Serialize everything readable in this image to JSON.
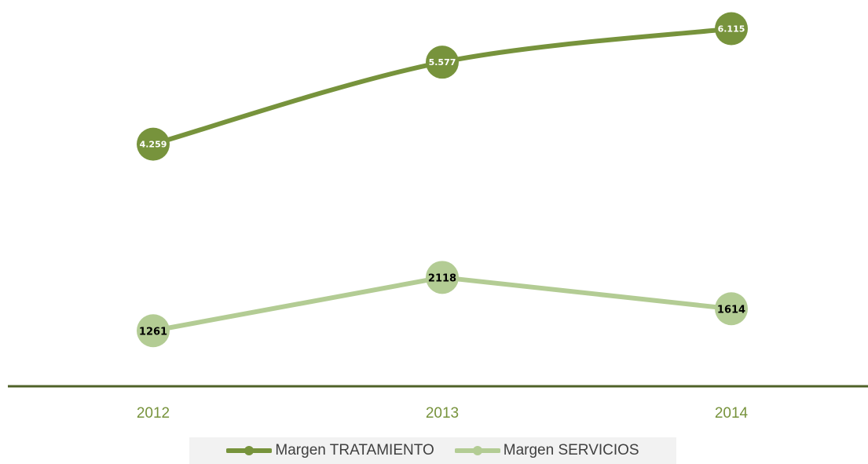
{
  "chart_data": {
    "type": "line",
    "title": "",
    "xlabel": "",
    "ylabel": "",
    "categories": [
      "2012",
      "2013",
      "2014"
    ],
    "ylim": [
      0,
      6500
    ],
    "grid": false,
    "legend_position": "bottom",
    "series": [
      {
        "name": "Margen TRATAMIENTO",
        "values": [
          4259,
          5577,
          6115
        ],
        "labels": [
          "4.259",
          "5.577",
          "6.115"
        ],
        "color": "#77933c",
        "label_color": "#ffffff"
      },
      {
        "name": "Margen SERVICIOS",
        "values": [
          1261,
          2118,
          1614
        ],
        "labels": [
          "1261",
          "2118",
          "1614"
        ],
        "color": "#b3cc94",
        "label_color": "#000000"
      }
    ],
    "axis_color": "#4f6228",
    "tick_label_color": "#77933c"
  }
}
